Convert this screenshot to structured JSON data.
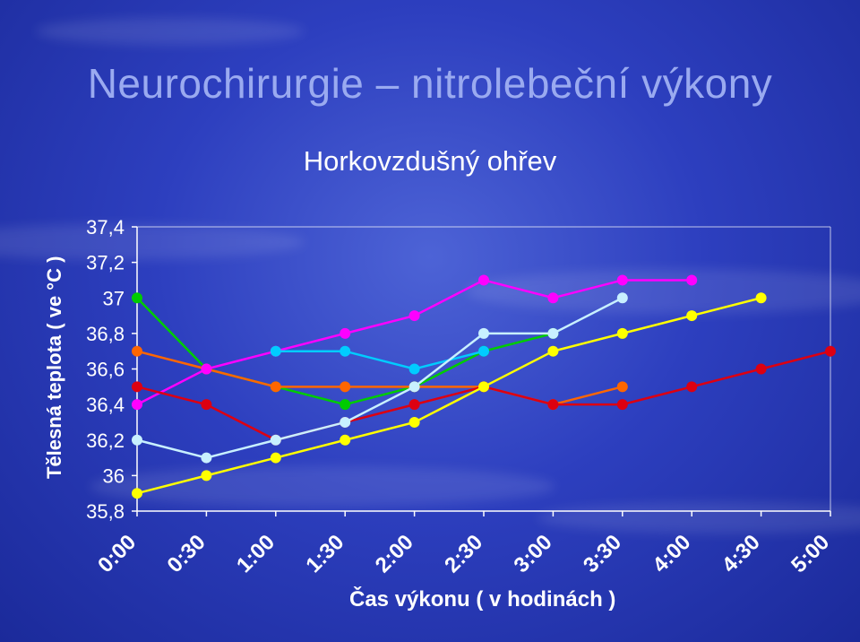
{
  "page": {
    "title": "Neurochirurgie – nitrolebeční výkony"
  },
  "chart_data": {
    "type": "line",
    "title": "Horkovzdušný ohřev",
    "xlabel": "Čas výkonu ( v hodinách )",
    "ylabel": "Tělesná teplota ( ve °C )",
    "categories": [
      "0:00",
      "0:30",
      "1:00",
      "1:30",
      "2:00",
      "2:30",
      "3:00",
      "3:30",
      "4:00",
      "4:30",
      "5:00"
    ],
    "yticks": [
      "35,8",
      "36",
      "36,2",
      "36,4",
      "36,6",
      "36,8",
      "37",
      "37,2",
      "37,4"
    ],
    "ylim": [
      35.8,
      37.4
    ],
    "grid": false,
    "series": [
      {
        "color": "#00cc00",
        "values": [
          37.0,
          36.6,
          36.5,
          36.4,
          36.5,
          36.7,
          36.8,
          null,
          null,
          null,
          null
        ]
      },
      {
        "color": "#ff6600",
        "values": [
          36.7,
          36.6,
          36.5,
          36.5,
          36.5,
          36.5,
          36.4,
          36.5,
          null,
          null,
          null
        ]
      },
      {
        "color": "#ff00ff",
        "values": [
          36.4,
          36.6,
          36.7,
          36.8,
          36.9,
          37.1,
          37.0,
          37.1,
          37.1,
          null,
          null
        ]
      },
      {
        "color": "#00ccff",
        "values": [
          null,
          null,
          36.7,
          36.7,
          36.6,
          36.7,
          null,
          null,
          null,
          null,
          null
        ]
      },
      {
        "color": "#dd0011",
        "values": [
          36.5,
          36.4,
          36.2,
          36.3,
          36.4,
          36.5,
          36.4,
          36.4,
          36.5,
          36.6,
          36.7
        ]
      },
      {
        "color": "#c8f0ff",
        "values": [
          36.2,
          36.1,
          36.2,
          36.3,
          36.5,
          36.8,
          36.8,
          37.0,
          null,
          null,
          null
        ]
      },
      {
        "color": "#ffff00",
        "values": [
          35.9,
          36.0,
          36.1,
          36.2,
          36.3,
          36.5,
          36.7,
          36.8,
          36.9,
          37.0,
          null
        ]
      }
    ]
  }
}
